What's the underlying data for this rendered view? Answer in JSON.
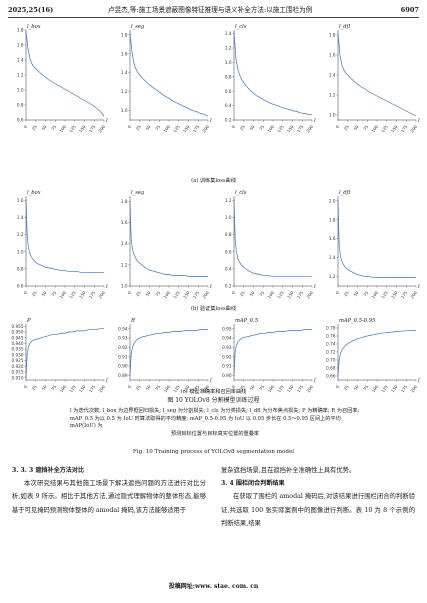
{
  "header": {
    "issue": "2025,25(16)",
    "title": "卢昱杰,等:施工场景遮蔽图像特征推理与语义补全方法:以施工围栏为例",
    "page_number": "6907"
  },
  "figure": {
    "sub_captions": {
      "train": "(a) 训练集loss曲线",
      "val": "(b) 验证集loss曲线",
      "metrics": "(c) 模型准确率和召回率曲线"
    },
    "title_zh": "图 10    YOLOv8 分割模型训练过程",
    "note_line1": "l 为迭代次数; l_box 为边界框回归损失; l_seg 为分割损失; l_cls 为分类损失; l_dfl 为分布焦点损失; P 为精确率; R 为召回率;",
    "note_line2": "mAP_0.5 为以 0.5 为 IoU 时算法取得的平均精度; mAP_0.5-0.95 为 IoU 以 0.05 步长在 0.5～0.95 区间上的平均 mAP(IoU) 为",
    "note_line3": "预测目标位置与目标真实位置的重叠率",
    "title_en": "Fig. 10    Training process of YOLOv8 segmentation model"
  },
  "body": {
    "left": {
      "section_heading": "3. 3. 3    遮挡补全方法对比",
      "paragraph": "本次研究结果与其他施工场景下解决遮挡问题的方法进行对比分析,如表 9 所示。相比于其他方法,通过隐式理解物体的整体形态,能够基于可见掩码预测物体整体的 amodal 掩码,该方法能够适用于"
    },
    "right": {
      "paragraph_end": "复杂遮挡场景,且在遮挡补全准确性上具有优势。",
      "section_heading": "3. 4    围栏闭合判断结果",
      "paragraph": "在获取了围栏的 amodal 掩码后,对该结果进行围栏闭合的判断验证,共选取 100 张实际案例中的图像进行判断。表 10 为 8 个示例的判断结果,结果"
    }
  },
  "footer": {
    "text": "投稿网址:www. stae. com. cn"
  },
  "chart_data": [
    {
      "id": "train-box",
      "type": "line",
      "ylabel": "l_box",
      "xlabel": "l",
      "x_ticks": [
        "0",
        "25",
        "50",
        "75",
        "100",
        "125",
        "150",
        "175",
        "200"
      ],
      "y_ticks": [
        "0.6",
        "0.8",
        "1.0",
        "1.2",
        "1.4",
        "1.6",
        "1.8"
      ],
      "xlim": [
        0,
        200
      ],
      "ylim": [
        0.6,
        1.8
      ],
      "series": [
        {
          "x": [
            0,
            5,
            10,
            15,
            20,
            30,
            40,
            50,
            60,
            70,
            80,
            90,
            100,
            110,
            120,
            130,
            140,
            150,
            160,
            170,
            180,
            190,
            200
          ],
          "y": [
            1.78,
            1.55,
            1.42,
            1.35,
            1.31,
            1.26,
            1.21,
            1.17,
            1.13,
            1.1,
            1.07,
            1.04,
            1.01,
            0.98,
            0.95,
            0.92,
            0.89,
            0.86,
            0.83,
            0.8,
            0.76,
            0.72,
            0.65
          ]
        }
      ]
    },
    {
      "id": "train-seg",
      "type": "line",
      "ylabel": "l_seg",
      "xlabel": "l",
      "x_ticks": [
        "0",
        "25",
        "50",
        "75",
        "100",
        "125",
        "150",
        "175",
        "200"
      ],
      "y_ticks": [
        "1.0",
        "1.2",
        "1.4",
        "1.6",
        "1.8"
      ],
      "xlim": [
        0,
        200
      ],
      "ylim": [
        0.9,
        1.85
      ],
      "series": [
        {
          "x": [
            0,
            5,
            10,
            15,
            20,
            30,
            40,
            50,
            60,
            70,
            80,
            90,
            100,
            110,
            120,
            130,
            140,
            150,
            160,
            170,
            180,
            190,
            200
          ],
          "y": [
            1.82,
            1.62,
            1.5,
            1.44,
            1.4,
            1.35,
            1.31,
            1.27,
            1.24,
            1.21,
            1.18,
            1.15,
            1.13,
            1.1,
            1.08,
            1.06,
            1.04,
            1.02,
            1.0,
            0.99,
            0.97,
            0.96,
            0.94
          ]
        }
      ]
    },
    {
      "id": "train-cls",
      "type": "line",
      "ylabel": "l_cls",
      "xlabel": "l",
      "x_ticks": [
        "0",
        "25",
        "50",
        "75",
        "100",
        "125",
        "150",
        "175",
        "200"
      ],
      "y_ticks": [
        "0.2",
        "0.4",
        "0.6",
        "0.8",
        "1.0",
        "1.2",
        "1.4"
      ],
      "xlim": [
        0,
        200
      ],
      "ylim": [
        0.2,
        1.45
      ],
      "series": [
        {
          "x": [
            0,
            5,
            10,
            15,
            20,
            30,
            40,
            50,
            60,
            70,
            80,
            90,
            100,
            110,
            120,
            130,
            140,
            150,
            160,
            170,
            180,
            190,
            200
          ],
          "y": [
            1.42,
            1.05,
            0.9,
            0.82,
            0.76,
            0.68,
            0.62,
            0.57,
            0.53,
            0.5,
            0.47,
            0.44,
            0.42,
            0.4,
            0.38,
            0.36,
            0.35,
            0.33,
            0.32,
            0.3,
            0.29,
            0.28,
            0.27
          ]
        }
      ]
    },
    {
      "id": "train-dfl",
      "type": "line",
      "ylabel": "l_dfl",
      "xlabel": "l",
      "x_ticks": [
        "0",
        "25",
        "50",
        "75",
        "100",
        "125",
        "150",
        "175",
        "200"
      ],
      "y_ticks": [
        "1.0",
        "1.2",
        "1.4",
        "1.6",
        "1.8"
      ],
      "xlim": [
        0,
        200
      ],
      "ylim": [
        0.95,
        1.85
      ],
      "series": [
        {
          "x": [
            0,
            5,
            10,
            15,
            20,
            30,
            40,
            50,
            60,
            70,
            80,
            90,
            100,
            110,
            120,
            130,
            140,
            150,
            160,
            170,
            180,
            190,
            200
          ],
          "y": [
            1.82,
            1.6,
            1.5,
            1.45,
            1.42,
            1.38,
            1.34,
            1.31,
            1.28,
            1.26,
            1.23,
            1.21,
            1.19,
            1.17,
            1.15,
            1.13,
            1.11,
            1.09,
            1.07,
            1.05,
            1.03,
            1.01,
            0.99
          ]
        }
      ]
    },
    {
      "id": "val-box",
      "type": "line",
      "ylabel": "l_box",
      "xlabel": "l",
      "x_ticks": [
        "0",
        "25",
        "50",
        "75",
        "100",
        "125",
        "150",
        "175",
        "200"
      ],
      "y_ticks": [
        "0.6",
        "0.8",
        "1.0",
        "1.2",
        "1.4",
        "1.6"
      ],
      "xlim": [
        0,
        200
      ],
      "ylim": [
        0.6,
        1.65
      ],
      "series": [
        {
          "x": [
            0,
            3,
            6,
            10,
            15,
            20,
            30,
            40,
            50,
            60,
            70,
            80,
            90,
            100,
            110,
            120,
            130,
            140,
            150,
            160,
            170,
            180,
            190,
            200
          ],
          "y": [
            1.62,
            1.2,
            1.05,
            0.98,
            0.93,
            0.9,
            0.86,
            0.84,
            0.82,
            0.81,
            0.8,
            0.79,
            0.78,
            0.78,
            0.77,
            0.77,
            0.77,
            0.76,
            0.76,
            0.76,
            0.76,
            0.76,
            0.76,
            0.76
          ]
        }
      ]
    },
    {
      "id": "val-seg",
      "type": "line",
      "ylabel": "l_seg",
      "xlabel": "l",
      "x_ticks": [
        "0",
        "25",
        "50",
        "75",
        "100",
        "125",
        "150",
        "175",
        "200"
      ],
      "y_ticks": [
        "1.0",
        "1.2",
        "1.4",
        "1.6",
        "1.8"
      ],
      "xlim": [
        0,
        200
      ],
      "ylim": [
        1.0,
        1.85
      ],
      "series": [
        {
          "x": [
            0,
            3,
            6,
            10,
            15,
            20,
            30,
            40,
            50,
            60,
            70,
            80,
            90,
            100,
            110,
            120,
            130,
            140,
            150,
            160,
            170,
            180,
            190,
            200
          ],
          "y": [
            1.8,
            1.45,
            1.35,
            1.3,
            1.26,
            1.23,
            1.2,
            1.17,
            1.15,
            1.14,
            1.13,
            1.12,
            1.11,
            1.11,
            1.1,
            1.1,
            1.1,
            1.1,
            1.09,
            1.09,
            1.09,
            1.09,
            1.09,
            1.09
          ]
        }
      ]
    },
    {
      "id": "val-cls",
      "type": "line",
      "ylabel": "l_cls",
      "xlabel": "l",
      "x_ticks": [
        "0",
        "25",
        "50",
        "75",
        "100",
        "125",
        "150",
        "175",
        "200"
      ],
      "y_ticks": [
        "0.2",
        "0.4",
        "0.6",
        "0.8",
        "1.0",
        "1.2"
      ],
      "xlim": [
        0,
        200
      ],
      "ylim": [
        0.2,
        1.25
      ],
      "series": [
        {
          "x": [
            0,
            3,
            6,
            10,
            15,
            20,
            30,
            40,
            50,
            60,
            70,
            80,
            90,
            100,
            110,
            120,
            130,
            140,
            150,
            160,
            170,
            180,
            190,
            200
          ],
          "y": [
            1.22,
            0.75,
            0.6,
            0.52,
            0.47,
            0.44,
            0.4,
            0.37,
            0.35,
            0.34,
            0.33,
            0.32,
            0.32,
            0.31,
            0.31,
            0.31,
            0.31,
            0.31,
            0.31,
            0.31,
            0.31,
            0.31,
            0.31,
            0.31
          ]
        }
      ]
    },
    {
      "id": "val-dfl",
      "type": "line",
      "ylabel": "l_dfl",
      "xlabel": "l",
      "x_ticks": [
        "0",
        "25",
        "50",
        "75",
        "100",
        "125",
        "150",
        "175",
        "200"
      ],
      "y_ticks": [
        "1.2",
        "1.4",
        "1.6",
        "1.8",
        "2.0"
      ],
      "xlim": [
        0,
        200
      ],
      "ylim": [
        1.1,
        2.05
      ],
      "series": [
        {
          "x": [
            0,
            3,
            6,
            10,
            15,
            20,
            30,
            40,
            50,
            60,
            70,
            80,
            90,
            100,
            110,
            120,
            130,
            140,
            150,
            160,
            170,
            180,
            190,
            200
          ],
          "y": [
            2.0,
            1.55,
            1.42,
            1.36,
            1.32,
            1.29,
            1.26,
            1.24,
            1.22,
            1.21,
            1.2,
            1.2,
            1.19,
            1.19,
            1.19,
            1.19,
            1.19,
            1.19,
            1.19,
            1.19,
            1.19,
            1.19,
            1.19,
            1.19
          ]
        }
      ]
    },
    {
      "id": "metric-p",
      "type": "line",
      "ylabel": "P",
      "xlabel": "l",
      "x_ticks": [
        "0",
        "25",
        "50",
        "75",
        "100",
        "125",
        "150",
        "175",
        "200"
      ],
      "y_ticks": [
        "0.910",
        "0.915",
        "0.920",
        "0.925",
        "0.930",
        "0.935",
        "0.940",
        "0.945",
        "0.950",
        "0.955"
      ],
      "xlim": [
        0,
        200
      ],
      "ylim": [
        0.908,
        0.957
      ],
      "series": [
        {
          "x": [
            0,
            3,
            6,
            10,
            15,
            20,
            30,
            40,
            50,
            60,
            70,
            80,
            90,
            100,
            110,
            120,
            130,
            140,
            150,
            160,
            170,
            180,
            190,
            200
          ],
          "y": [
            0.91,
            0.93,
            0.937,
            0.94,
            0.942,
            0.943,
            0.944,
            0.945,
            0.946,
            0.947,
            0.948,
            0.948,
            0.949,
            0.949,
            0.95,
            0.95,
            0.951,
            0.951,
            0.951,
            0.952,
            0.952,
            0.952,
            0.953,
            0.953
          ]
        }
      ]
    },
    {
      "id": "metric-r",
      "type": "line",
      "ylabel": "R",
      "xlabel": "l",
      "x_ticks": [
        "0",
        "25",
        "50",
        "75",
        "100",
        "125",
        "150",
        "175",
        "200"
      ],
      "y_ticks": [
        "0.89",
        "0.90",
        "0.91",
        "0.92",
        "0.93",
        "0.94"
      ],
      "xlim": [
        0,
        200
      ],
      "ylim": [
        0.885,
        0.945
      ],
      "series": [
        {
          "x": [
            0,
            3,
            6,
            10,
            15,
            20,
            30,
            40,
            50,
            60,
            70,
            80,
            90,
            100,
            110,
            120,
            130,
            140,
            150,
            160,
            170,
            180,
            190,
            200
          ],
          "y": [
            0.89,
            0.912,
            0.92,
            0.924,
            0.927,
            0.929,
            0.931,
            0.932,
            0.933,
            0.934,
            0.935,
            0.935,
            0.936,
            0.936,
            0.937,
            0.937,
            0.937,
            0.938,
            0.938,
            0.938,
            0.938,
            0.939,
            0.939,
            0.939
          ]
        }
      ]
    },
    {
      "id": "metric-map50",
      "type": "line",
      "ylabel": "mAP_0.5",
      "xlabel": "l",
      "x_ticks": [
        "0",
        "25",
        "50",
        "75",
        "100",
        "125",
        "150",
        "175",
        "200"
      ],
      "y_ticks": [
        "0.90",
        "0.91",
        "0.92",
        "0.93",
        "0.94",
        "0.95"
      ],
      "xlim": [
        0,
        200
      ],
      "ylim": [
        0.895,
        0.955
      ],
      "series": [
        {
          "x": [
            0,
            3,
            6,
            10,
            15,
            20,
            30,
            40,
            50,
            60,
            70,
            80,
            90,
            100,
            110,
            120,
            130,
            140,
            150,
            160,
            170,
            180,
            190,
            200
          ],
          "y": [
            0.9,
            0.925,
            0.932,
            0.936,
            0.938,
            0.94,
            0.941,
            0.942,
            0.943,
            0.944,
            0.945,
            0.945,
            0.946,
            0.946,
            0.947,
            0.947,
            0.947,
            0.948,
            0.948,
            0.948,
            0.948,
            0.949,
            0.949,
            0.949
          ]
        }
      ]
    },
    {
      "id": "metric-map5095",
      "type": "line",
      "ylabel": "mAP_0.5-0.95",
      "xlabel": "l",
      "x_ticks": [
        "0",
        "25",
        "50",
        "75",
        "100",
        "125",
        "150",
        "175",
        "200"
      ],
      "y_ticks": [
        "0.66",
        "0.68",
        "0.70",
        "0.72",
        "0.74",
        "0.76",
        "0.78"
      ],
      "xlim": [
        0,
        200
      ],
      "ylim": [
        0.65,
        0.79
      ],
      "series": [
        {
          "x": [
            0,
            3,
            6,
            10,
            15,
            20,
            30,
            40,
            50,
            60,
            70,
            80,
            90,
            100,
            110,
            120,
            130,
            140,
            150,
            160,
            170,
            180,
            190,
            200
          ],
          "y": [
            0.66,
            0.7,
            0.715,
            0.725,
            0.732,
            0.737,
            0.744,
            0.749,
            0.753,
            0.756,
            0.759,
            0.761,
            0.763,
            0.765,
            0.767,
            0.768,
            0.769,
            0.77,
            0.771,
            0.772,
            0.773,
            0.773,
            0.774,
            0.774
          ]
        }
      ]
    }
  ]
}
